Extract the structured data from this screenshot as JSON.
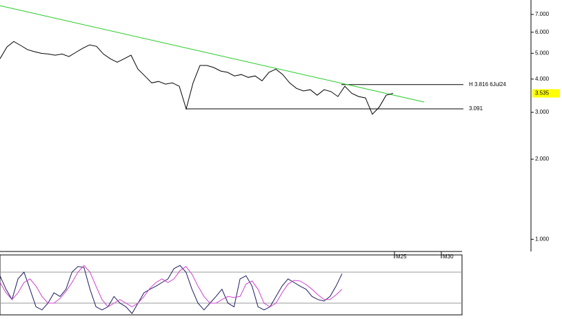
{
  "chart_data": [
    {
      "type": "line",
      "ylog": true,
      "x": [
        0,
        1,
        2,
        3,
        4,
        5,
        6,
        7,
        8,
        9,
        10,
        11,
        12,
        13,
        14,
        15,
        16,
        17,
        18,
        19,
        20,
        21,
        22,
        23,
        24,
        25,
        26,
        27,
        28,
        29,
        30,
        31,
        32,
        33,
        34,
        35,
        36,
        37,
        38,
        39,
        40,
        41,
        42,
        43,
        44,
        45,
        46,
        47,
        48,
        49,
        50,
        51,
        52,
        53,
        54,
        55,
        56,
        57
      ],
      "series": [
        {
          "color": "#000000",
          "values": [
            4.77,
            5.28,
            5.54,
            5.35,
            5.16,
            5.07,
            5.0,
            4.97,
            4.92,
            4.97,
            4.86,
            5.04,
            5.22,
            5.38,
            5.31,
            4.97,
            4.77,
            4.63,
            4.77,
            4.92,
            4.36,
            4.11,
            3.87,
            3.92,
            3.83,
            3.87,
            3.76,
            3.09,
            3.87,
            4.5,
            4.5,
            4.42,
            4.29,
            4.24,
            4.11,
            4.16,
            4.06,
            4.11,
            3.94,
            4.24,
            4.36,
            4.16,
            3.87,
            3.69,
            3.61,
            3.65,
            3.48,
            3.65,
            3.59,
            3.44,
            3.76,
            3.54,
            3.44,
            3.4,
            2.95,
            3.14,
            3.48,
            3.535
          ]
        }
      ],
      "trendline": {
        "color": "#22cc22",
        "x": [
          0,
          61.5
        ],
        "values": [
          7.55,
          3.28
        ]
      },
      "hlines": [
        {
          "value": 3.816,
          "label": "H 3.816 6Jul24",
          "x_start": 49.5,
          "x_end": 67.2
        },
        {
          "value": 3.091,
          "x_start": 27,
          "x_end": 67.2
        }
      ],
      "last_price": 3.535,
      "last_price_color": "#ffff00",
      "xlim": [
        0,
        77
      ],
      "xticks": [
        {
          "value": 57.2,
          "label": "M25"
        },
        {
          "value": 64,
          "label": "M30"
        }
      ],
      "ylim": [
        0.9,
        7.93
      ],
      "yticks": [
        {
          "value": 1,
          "label": "1.000"
        },
        {
          "value": 2,
          "label": "2.000"
        },
        {
          "value": 3,
          "label": "3.000"
        },
        {
          "value": 4,
          "label": "4.000"
        },
        {
          "value": 5,
          "label": "5.000"
        },
        {
          "value": 6,
          "label": "6.000"
        },
        {
          "value": 7,
          "label": "7.000"
        }
      ]
    },
    {
      "type": "line",
      "x": [
        0,
        1,
        2,
        3,
        4,
        5,
        6,
        7,
        8,
        9,
        10,
        11,
        12,
        13,
        14,
        15,
        16,
        17,
        18,
        19,
        20,
        21,
        22,
        23,
        24,
        25,
        26,
        27,
        28,
        29,
        30,
        31,
        32,
        33,
        34,
        35,
        36,
        37,
        38,
        39,
        40,
        41,
        42,
        43,
        44,
        45,
        46,
        47,
        48,
        49,
        50,
        51,
        52,
        53,
        54,
        55,
        56,
        57
      ],
      "xlim": [
        0,
        77
      ],
      "ylim": [
        0,
        100
      ],
      "levels": [
        80,
        20
      ],
      "series": [
        {
          "color": "#1a1a60",
          "values": [
            73,
            47,
            27,
            67,
            80,
            47,
            13,
            7,
            20,
            40,
            33,
            47,
            80,
            91,
            89,
            47,
            13,
            7,
            13,
            33,
            20,
            13,
            0,
            20,
            40,
            47,
            53,
            60,
            67,
            87,
            93,
            80,
            47,
            20,
            7,
            20,
            33,
            47,
            20,
            13,
            67,
            73,
            53,
            13,
            7,
            13,
            33,
            53,
            67,
            60,
            53,
            47,
            33,
            27,
            24,
            33,
            53,
            77
          ]
        },
        {
          "color": "#d040d0",
          "values": [
            60,
            40,
            27,
            40,
            60,
            67,
            53,
            33,
            20,
            20,
            29,
            43,
            60,
            80,
            93,
            80,
            53,
            27,
            13,
            20,
            27,
            20,
            13,
            20,
            33,
            49,
            60,
            67,
            60,
            67,
            83,
            91,
            76,
            53,
            33,
            20,
            20,
            27,
            33,
            31,
            33,
            57,
            63,
            47,
            20,
            13,
            20,
            40,
            57,
            64,
            63,
            56,
            47,
            36,
            27,
            27,
            36,
            47
          ]
        }
      ]
    }
  ]
}
